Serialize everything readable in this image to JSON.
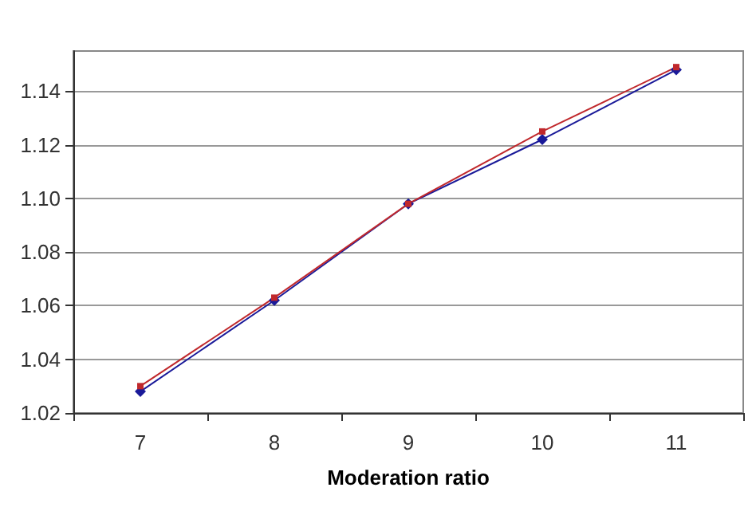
{
  "chart_data": {
    "type": "line",
    "xlabel": "Moderation ratio",
    "categories": [
      "7",
      "8",
      "9",
      "10",
      "11"
    ],
    "series": [
      {
        "color": "#1a1a99",
        "marker": "diamond",
        "values": [
          1.028,
          1.062,
          1.098,
          1.122,
          1.148
        ]
      },
      {
        "color": "#c0282c",
        "marker": "square",
        "values": [
          1.03,
          1.063,
          1.098,
          1.125,
          1.149
        ]
      }
    ],
    "ylim": [
      1.02,
      1.155
    ],
    "yticks": [
      1.02,
      1.04,
      1.06,
      1.08,
      {
        "value": 1.1,
        "label": "1.10"
      },
      1.12,
      1.14
    ],
    "grid": "y"
  }
}
